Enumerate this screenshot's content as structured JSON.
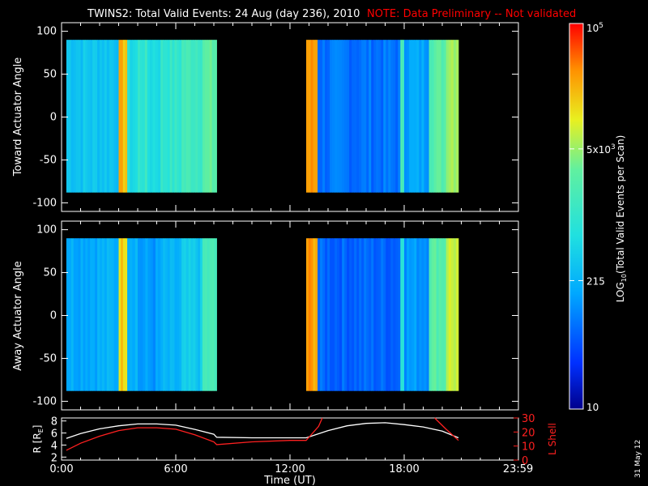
{
  "title": {
    "main": "TWINS2: Total Valid Events: 24 Aug (day 236), 2010",
    "note": "NOTE: Data Preliminary -- Not validated"
  },
  "colors": {
    "background": "#000000",
    "axes": "#ffffff",
    "note": "#ff0000",
    "r_line": "#ffffff",
    "lshell_line": "#ff2020"
  },
  "stamp": "31 May 12",
  "chart_data": [
    {
      "type": "heatmap",
      "name": "toward",
      "ylabel": "Toward Actuator Angle",
      "xlim": [
        0,
        24
      ],
      "ylim": [
        -110,
        110
      ],
      "yticks": [
        -100,
        -50,
        0,
        50,
        100
      ],
      "data_y_range": [
        -88,
        90
      ],
      "segments": [
        {
          "start": 0.25,
          "end": 8.15,
          "columns": [
            {
              "t0": 0.25,
              "t1": 3.0,
              "level": 0.38
            },
            {
              "t0": 3.0,
              "t1": 3.45,
              "level": 0.82
            },
            {
              "t0": 3.45,
              "t1": 4.0,
              "level": 0.44
            },
            {
              "t0": 4.0,
              "t1": 4.5,
              "level": 0.5
            },
            {
              "t0": 4.5,
              "t1": 5.2,
              "level": 0.45
            },
            {
              "t0": 5.2,
              "t1": 6.3,
              "level": 0.5
            },
            {
              "t0": 6.3,
              "t1": 7.4,
              "level": 0.55
            },
            {
              "t0": 7.4,
              "t1": 8.15,
              "level": 0.6
            }
          ]
        },
        {
          "start": 12.85,
          "end": 20.85,
          "columns": [
            {
              "t0": 12.85,
              "t1": 13.45,
              "level": 0.86
            },
            {
              "t0": 13.45,
              "t1": 17.8,
              "level": 0.22
            },
            {
              "t0": 17.8,
              "t1": 18.0,
              "level": 0.55
            },
            {
              "t0": 18.0,
              "t1": 19.3,
              "level": 0.3
            },
            {
              "t0": 19.3,
              "t1": 20.2,
              "level": 0.6
            },
            {
              "t0": 20.2,
              "t1": 20.85,
              "level": 0.7
            }
          ]
        }
      ]
    },
    {
      "type": "heatmap",
      "name": "away",
      "ylabel": "Away Actuator Angle",
      "xlim": [
        0,
        24
      ],
      "ylim": [
        -110,
        110
      ],
      "yticks": [
        -100,
        -50,
        0,
        50,
        100
      ],
      "data_y_range": [
        -88,
        90
      ],
      "segments": [
        {
          "start": 0.25,
          "end": 8.15,
          "columns": [
            {
              "t0": 0.25,
              "t1": 3.0,
              "level": 0.32
            },
            {
              "t0": 3.0,
              "t1": 3.45,
              "level": 0.8
            },
            {
              "t0": 3.45,
              "t1": 4.0,
              "level": 0.34
            },
            {
              "t0": 4.0,
              "t1": 5.2,
              "level": 0.28
            },
            {
              "t0": 5.2,
              "t1": 6.3,
              "level": 0.32
            },
            {
              "t0": 6.3,
              "t1": 7.4,
              "level": 0.38
            },
            {
              "t0": 7.4,
              "t1": 8.15,
              "level": 0.55
            }
          ]
        },
        {
          "start": 12.85,
          "end": 20.85,
          "columns": [
            {
              "t0": 12.85,
              "t1": 13.45,
              "level": 0.86
            },
            {
              "t0": 13.45,
              "t1": 17.8,
              "level": 0.2
            },
            {
              "t0": 17.8,
              "t1": 18.0,
              "level": 0.5
            },
            {
              "t0": 18.0,
              "t1": 19.3,
              "level": 0.28
            },
            {
              "t0": 19.3,
              "t1": 20.2,
              "level": 0.6
            },
            {
              "t0": 20.2,
              "t1": 20.85,
              "level": 0.72
            }
          ]
        }
      ]
    },
    {
      "type": "line",
      "name": "orbit",
      "xlabel": "Time (UT)",
      "xlim": [
        0,
        24
      ],
      "xticks": [
        0,
        6,
        12,
        18,
        23.983
      ],
      "xtick_labels": [
        "0:00",
        "6:00",
        "12:00",
        "18:00",
        "23:59"
      ],
      "y_left": {
        "label": "R [R",
        "label_sub": "E",
        "label_end": "]",
        "lim": [
          1.5,
          8.5
        ],
        "ticks": [
          2,
          4,
          6,
          8
        ]
      },
      "y_right": {
        "label": "L Shell",
        "lim": [
          0,
          30
        ],
        "ticks": [
          0,
          10,
          20,
          30
        ]
      },
      "series": [
        {
          "name": "R",
          "axis": "left",
          "x": [
            0.25,
            1,
            2,
            3,
            4,
            5,
            6,
            7,
            8,
            8.15,
            10,
            12,
            12.85,
            14,
            15,
            16,
            17,
            18,
            19,
            20,
            20.85
          ],
          "y": [
            5.1,
            5.9,
            6.7,
            7.2,
            7.5,
            7.5,
            7.3,
            6.6,
            5.8,
            5.3,
            5.2,
            5.2,
            5.2,
            6.4,
            7.2,
            7.6,
            7.7,
            7.4,
            7.0,
            6.3,
            5.2
          ]
        },
        {
          "name": "L Shell",
          "axis": "right",
          "x": [
            0.25,
            1,
            2,
            3,
            4,
            5,
            6,
            7,
            8,
            8.15,
            10,
            12,
            12.85,
            13.5,
            13.7,
            null,
            19.6,
            20.2,
            20.85
          ],
          "y": [
            7,
            12,
            17,
            21,
            23,
            23,
            22,
            18,
            13,
            11,
            13,
            14,
            14,
            24,
            30,
            null,
            30,
            22,
            14
          ]
        }
      ]
    }
  ],
  "colorbar": {
    "label_parts": [
      "LOG",
      "10",
      "(Total Valid Events per Scan)"
    ],
    "ticks": [
      {
        "value": 10,
        "base": "10",
        "exp": ""
      },
      {
        "value": 215,
        "base": "215",
        "exp": ""
      },
      {
        "value": 5000,
        "base": "5x10",
        "exp": "3"
      },
      {
        "value": 100000,
        "base": "10",
        "exp": "5"
      }
    ],
    "range": [
      10,
      100000
    ]
  }
}
